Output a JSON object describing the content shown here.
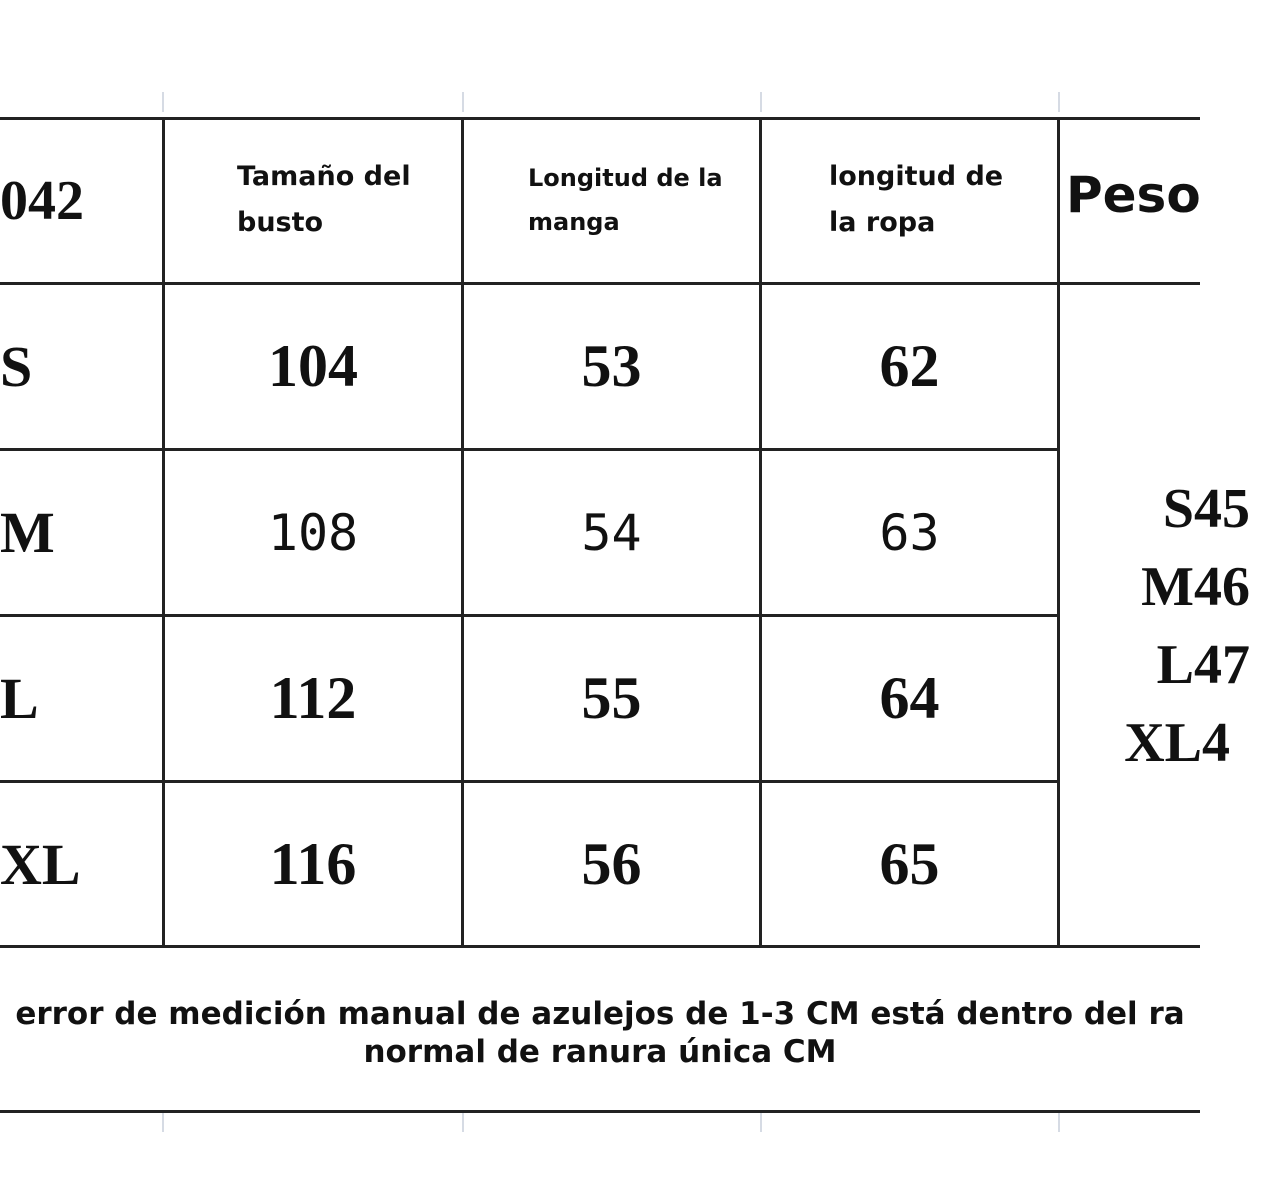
{
  "header": {
    "model": "042",
    "bust": "Tamaño del busto",
    "sleeve": "Longitud de la manga",
    "length": "longitud de la ropa",
    "weight": "Peso"
  },
  "rows": [
    {
      "size": "S",
      "bust": "104",
      "sleeve": "53",
      "length": "62"
    },
    {
      "size": "M",
      "bust": "108",
      "sleeve": "54",
      "length": "63"
    },
    {
      "size": "L",
      "bust": "112",
      "sleeve": "55",
      "length": "64"
    },
    {
      "size": "XL",
      "bust": "116",
      "sleeve": "56",
      "length": "65"
    }
  ],
  "weights": [
    "S45",
    "M46",
    "L47",
    "XL4"
  ],
  "note": {
    "line1": "error de medición manual de azulejos de 1-3 CM está dentro del ra",
    "line2": "normal de ranura única CM"
  }
}
